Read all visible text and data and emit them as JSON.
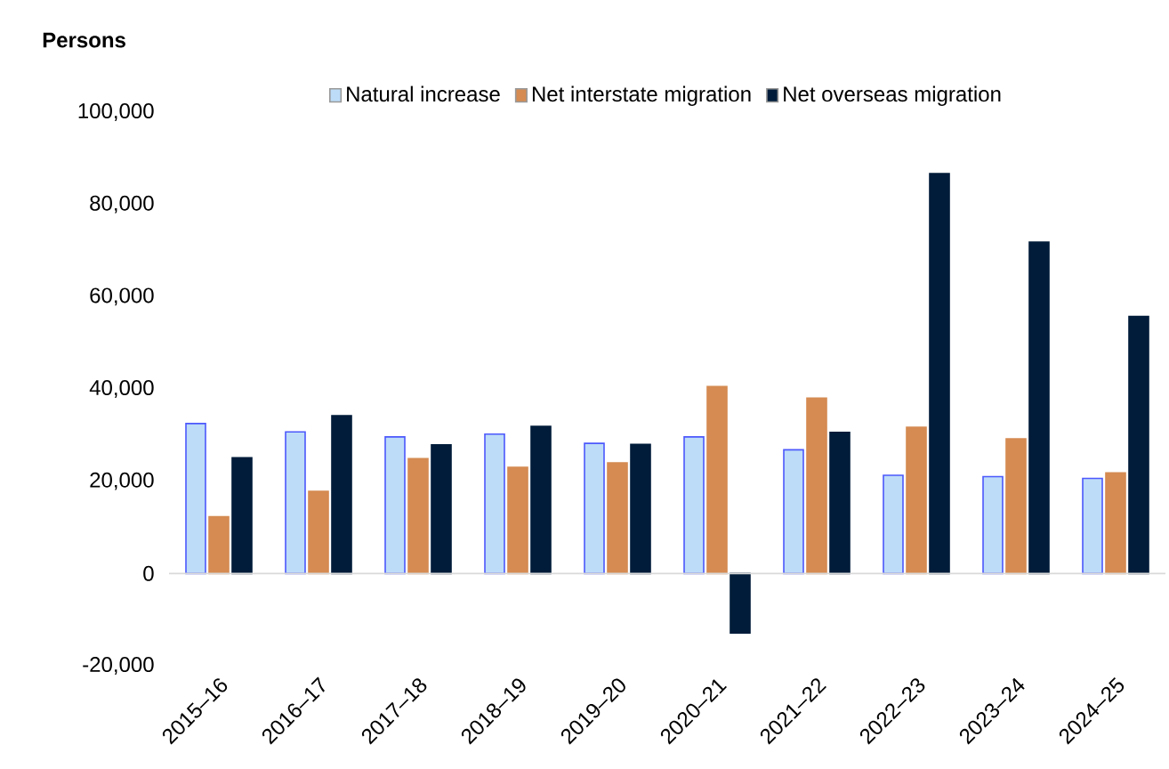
{
  "chart_data": {
    "type": "bar",
    "ylabel": "Persons",
    "categories": [
      "2015–16",
      "2016–17",
      "2017–18",
      "2018–19",
      "2019–20",
      "2020–21",
      "2021–22",
      "2022–23",
      "2023–24",
      "2024–25"
    ],
    "series": [
      {
        "name": "Natural increase",
        "color": "#bddcf8",
        "values": [
          32500,
          30700,
          29600,
          30200,
          28200,
          29600,
          26800,
          21300,
          21000,
          20600
        ]
      },
      {
        "name": "Net interstate migration",
        "color": "#d58b52",
        "values": [
          12300,
          17800,
          24900,
          23000,
          24000,
          40500,
          38000,
          31700,
          29200,
          21800
        ]
      },
      {
        "name": "Net overseas migration",
        "color": "#001c3a",
        "values": [
          25100,
          34200,
          27900,
          31900,
          28000,
          -12900,
          30600,
          86700,
          71800,
          55700
        ]
      }
    ],
    "ylim": [
      -20000,
      100000
    ],
    "yticks": [
      {
        "value": -20000,
        "label": "-20,000"
      },
      0,
      {
        "value": 20000,
        "label": "20,000"
      },
      {
        "value": 40000,
        "label": "40,000"
      },
      {
        "value": 60000,
        "label": "60,000"
      },
      {
        "value": 80000,
        "label": "80,000"
      },
      {
        "value": 100000,
        "label": "100,000"
      }
    ],
    "ref_lines": [
      {
        "axis": "y",
        "value": 0,
        "color": "#d9d9d9"
      }
    ],
    "grid": false,
    "legend": "top"
  }
}
